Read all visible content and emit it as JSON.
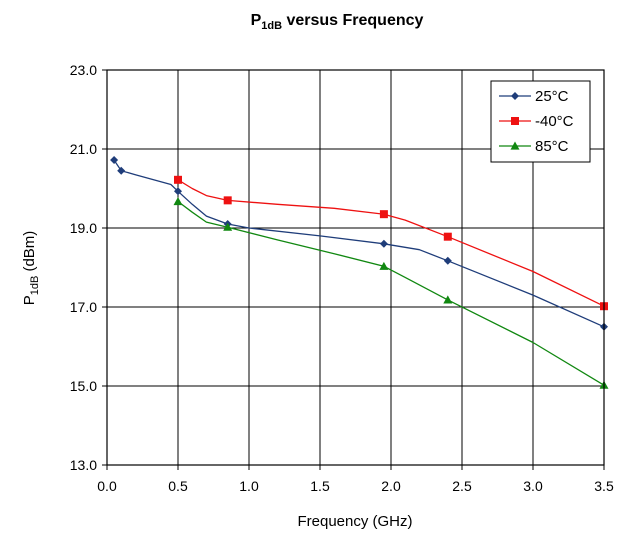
{
  "chart_data": {
    "type": "line",
    "title": "P1dB versus Frequency",
    "title_main": "P",
    "title_sub": "1dB",
    "title_rest": " versus Frequency",
    "xlabel": "Frequency (GHz)",
    "ylabel_main": "P",
    "ylabel_sub": "1dB",
    "ylabel_rest": " (dBm)",
    "xlim": [
      0.0,
      3.5
    ],
    "ylim": [
      13.0,
      23.0
    ],
    "x_ticks": [
      0.0,
      0.5,
      1.0,
      1.5,
      2.0,
      2.5,
      3.0,
      3.5
    ],
    "x_tick_labels": [
      "0.0",
      "0.5",
      "1.0",
      "1.5",
      "2.0",
      "2.5",
      "3.0",
      "3.5"
    ],
    "y_ticks": [
      13.0,
      15.0,
      17.0,
      19.0,
      21.0,
      23.0
    ],
    "y_tick_labels": [
      "13.0",
      "15.0",
      "17.0",
      "19.0",
      "21.0",
      "23.0"
    ],
    "grid": true,
    "legend_position": "top-right",
    "series": [
      {
        "name": "25°C",
        "color": "#1f3d7a",
        "marker": "diamond",
        "points": [
          [
            0.05,
            20.72
          ],
          [
            0.1,
            20.45
          ],
          [
            0.5,
            19.93
          ],
          [
            0.85,
            19.1
          ],
          [
            1.95,
            18.6
          ],
          [
            2.4,
            18.17
          ],
          [
            3.5,
            16.5
          ]
        ],
        "curve": [
          [
            0.05,
            20.72
          ],
          [
            0.1,
            20.45
          ],
          [
            0.2,
            20.35
          ],
          [
            0.45,
            20.1
          ],
          [
            0.5,
            19.93
          ],
          [
            0.6,
            19.6
          ],
          [
            0.7,
            19.3
          ],
          [
            0.85,
            19.1
          ],
          [
            1.0,
            19.0
          ],
          [
            1.5,
            18.8
          ],
          [
            1.95,
            18.6
          ],
          [
            2.2,
            18.45
          ],
          [
            2.4,
            18.17
          ],
          [
            3.0,
            17.3
          ],
          [
            3.5,
            16.5
          ]
        ]
      },
      {
        "name": "-40°C",
        "color": "#ee1111",
        "marker": "square",
        "points": [
          [
            0.5,
            20.22
          ],
          [
            0.85,
            19.7
          ],
          [
            1.95,
            19.35
          ],
          [
            2.4,
            18.78
          ],
          [
            3.5,
            17.02
          ]
        ],
        "curve": [
          [
            0.5,
            20.22
          ],
          [
            0.6,
            20.0
          ],
          [
            0.7,
            19.82
          ],
          [
            0.85,
            19.7
          ],
          [
            1.2,
            19.6
          ],
          [
            1.6,
            19.5
          ],
          [
            1.95,
            19.35
          ],
          [
            2.1,
            19.2
          ],
          [
            2.4,
            18.78
          ],
          [
            3.0,
            17.9
          ],
          [
            3.5,
            17.02
          ]
        ]
      },
      {
        "name": "85°C",
        "color": "#118811",
        "marker": "triangle",
        "points": [
          [
            0.5,
            19.67
          ],
          [
            0.85,
            19.02
          ],
          [
            1.95,
            18.03
          ],
          [
            2.4,
            17.18
          ],
          [
            3.5,
            15.02
          ]
        ],
        "curve": [
          [
            0.5,
            19.67
          ],
          [
            0.6,
            19.4
          ],
          [
            0.7,
            19.15
          ],
          [
            0.85,
            19.02
          ],
          [
            1.2,
            18.7
          ],
          [
            1.6,
            18.35
          ],
          [
            1.95,
            18.03
          ],
          [
            2.1,
            17.75
          ],
          [
            2.4,
            17.18
          ],
          [
            3.0,
            16.1
          ],
          [
            3.5,
            15.02
          ]
        ]
      }
    ]
  }
}
